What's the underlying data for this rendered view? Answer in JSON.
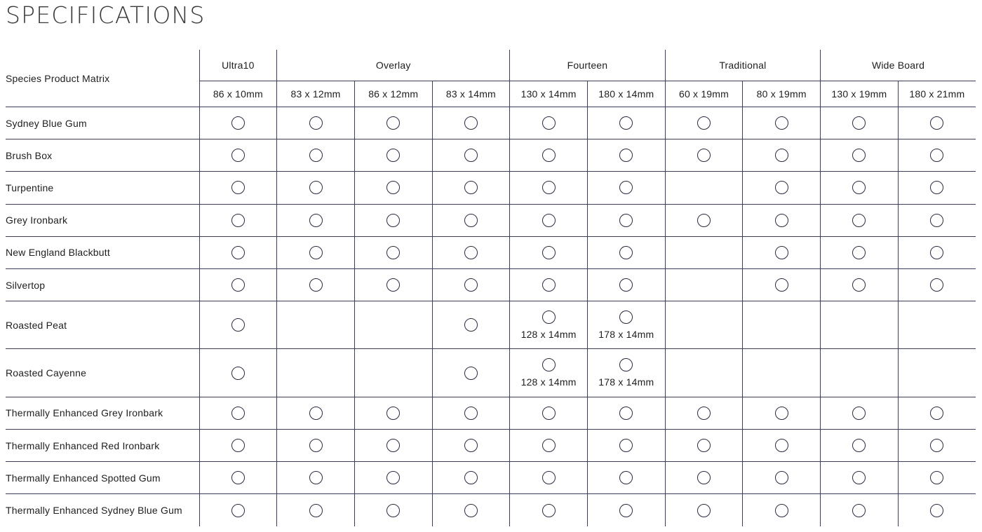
{
  "title": "SPECIFICATIONS",
  "matrix_label": "Species Product Matrix",
  "groups": [
    {
      "name": "Ultra10",
      "sizes": [
        "86 x 10mm"
      ]
    },
    {
      "name": "Overlay",
      "sizes": [
        "83 x 12mm",
        "86 x 12mm",
        "83 x 14mm"
      ]
    },
    {
      "name": "Fourteen",
      "sizes": [
        "130 x 14mm",
        "180 x 14mm"
      ]
    },
    {
      "name": "Traditional",
      "sizes": [
        "60 x 19mm",
        "80 x 19mm"
      ]
    },
    {
      "name": "Wide Board",
      "sizes": [
        "130 x 19mm",
        "180 x 21mm"
      ]
    }
  ],
  "rows": [
    {
      "species": "Sydney Blue Gum",
      "cells": [
        1,
        1,
        1,
        1,
        1,
        1,
        1,
        1,
        1,
        1
      ]
    },
    {
      "species": "Brush Box",
      "cells": [
        1,
        1,
        1,
        1,
        1,
        1,
        1,
        1,
        1,
        1
      ]
    },
    {
      "species": "Turpentine",
      "cells": [
        1,
        1,
        1,
        1,
        1,
        1,
        0,
        1,
        1,
        1
      ]
    },
    {
      "species": "Grey Ironbark",
      "cells": [
        1,
        1,
        1,
        1,
        1,
        1,
        1,
        1,
        1,
        1
      ]
    },
    {
      "species": "New England Blackbutt",
      "cells": [
        1,
        1,
        1,
        1,
        1,
        1,
        0,
        1,
        1,
        1
      ]
    },
    {
      "species": "Silvertop",
      "cells": [
        1,
        1,
        1,
        1,
        1,
        1,
        0,
        1,
        1,
        1
      ]
    },
    {
      "species": "Roasted Peat",
      "cells": [
        1,
        0,
        0,
        1,
        "128 x 14mm",
        "178 x 14mm",
        0,
        0,
        0,
        0
      ]
    },
    {
      "species": "Roasted Cayenne",
      "cells": [
        1,
        0,
        0,
        1,
        "128 x 14mm",
        "178 x 14mm",
        0,
        0,
        0,
        0
      ]
    },
    {
      "species": "Thermally Enhanced Grey Ironbark",
      "cells": [
        1,
        1,
        1,
        1,
        1,
        1,
        1,
        1,
        1,
        1
      ]
    },
    {
      "species": "Thermally Enhanced Red Ironbark",
      "cells": [
        1,
        1,
        1,
        1,
        1,
        1,
        1,
        1,
        1,
        1
      ]
    },
    {
      "species": "Thermally Enhanced Spotted Gum",
      "cells": [
        1,
        1,
        1,
        1,
        1,
        1,
        1,
        1,
        1,
        1
      ]
    },
    {
      "species": "Thermally Enhanced Sydney Blue Gum",
      "cells": [
        1,
        1,
        1,
        1,
        1,
        1,
        1,
        1,
        1,
        1
      ]
    }
  ]
}
